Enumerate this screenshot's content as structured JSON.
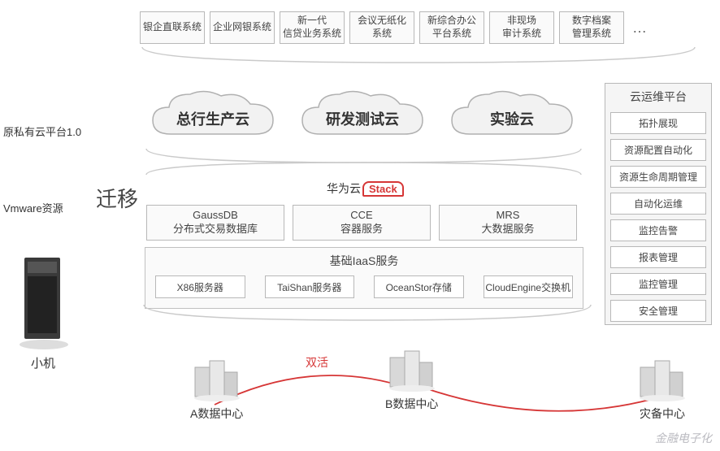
{
  "colors": {
    "border": "#b8b8b8",
    "boxBg": "#fafafa",
    "text": "#444",
    "accent": "#d63636",
    "braceStroke": "#cacaca",
    "cloudFill": "#f0f0f0",
    "cloudStroke": "#b0b0b0",
    "serverDark": "#3a3a3a",
    "buildingFill": "#d8d8d8"
  },
  "topApps": [
    "银企直联系统",
    "企业网银系统",
    "新一代\n信贷业务系统",
    "会议无纸化\n系统",
    "新综合办公\n平台系统",
    "非现场\n审计系统",
    "数字档案\n管理系统"
  ],
  "topMore": "…",
  "leftLabel1": "原私有云平台1.0",
  "leftLabel2": "Vmware资源",
  "migrateLabel": "迁移",
  "serverLabel": "小机",
  "clouds": [
    "总行生产云",
    "研发测试云",
    "实验云"
  ],
  "stackLogo": {
    "prefix": "华为云",
    "box": "Stack"
  },
  "midServices": [
    {
      "title": "GaussDB",
      "sub": "分布式交易数据库"
    },
    {
      "title": "CCE",
      "sub": "容器服务"
    },
    {
      "title": "MRS",
      "sub": "大数据服务"
    }
  ],
  "iaas": {
    "title": "基础IaaS服务",
    "items": [
      "X86服务器",
      "TaiShan服务器",
      "OceanStor存储",
      "CloudEngine交换机"
    ]
  },
  "opsPanel": {
    "title": "云运维平台",
    "items": [
      "拓扑展现",
      "资源配置自动化",
      "资源生命周期管理",
      "自动化运维",
      "监控告警",
      "报表管理",
      "监控管理",
      "安全管理"
    ]
  },
  "datacenters": {
    "activeLabel": "双活",
    "a": "A数据中心",
    "b": "B数据中心",
    "c": "灾备中心"
  },
  "watermark": "金融电子化"
}
